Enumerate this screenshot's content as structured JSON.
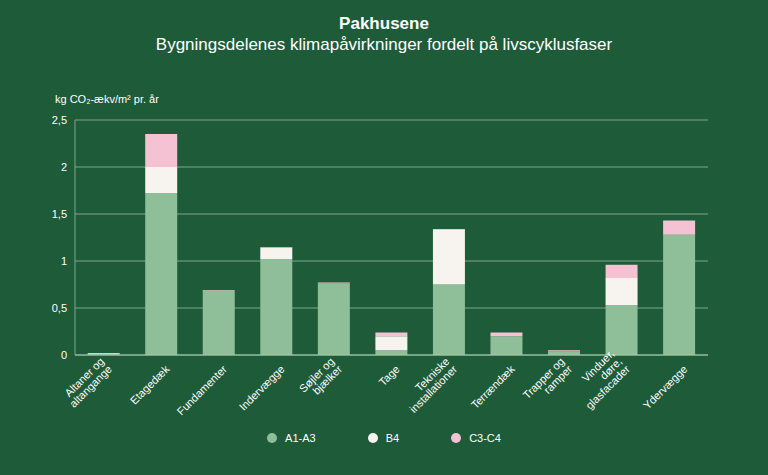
{
  "chart_data": {
    "type": "bar",
    "title": "Pakhusene",
    "subtitle": "Bygningsdelenes klimapåvirkninger fordelt på livscyklusfaser",
    "y_label": "kg CO₂-ækv/m² pr. år",
    "categories": [
      "Altaner og altangange",
      "Etagedæk",
      "Fundamenter",
      "Indervægge",
      "Søjler og bjælker",
      "Tage",
      "Tekniske installationer",
      "Terrændæk",
      "Trapper og ramper",
      "Vinduer, døre, glasfacader",
      "Ydervægge"
    ],
    "series": [
      {
        "name": "A1-A3",
        "color": "#8fbf98",
        "values": [
          0.01,
          1.72,
          0.68,
          1.02,
          0.76,
          0.05,
          0.75,
          0.2,
          0.04,
          0.53,
          1.28
        ]
      },
      {
        "name": "B4",
        "color": "#f7f3ef",
        "values": [
          0,
          0.28,
          0,
          0.12,
          0,
          0.15,
          0.58,
          0,
          0,
          0.29,
          0
        ]
      },
      {
        "name": "C3-C4",
        "color": "#f4c2d2",
        "values": [
          0.01,
          0.35,
          0.01,
          0.01,
          0.01,
          0.04,
          0.01,
          0.04,
          0.01,
          0.14,
          0.15
        ]
      }
    ],
    "stacked": true,
    "ylim": [
      0,
      2.5
    ],
    "yticks": [
      0,
      {
        "value": 0.5,
        "label": "0,5"
      },
      1,
      {
        "value": 1.5,
        "label": "1,5"
      },
      2,
      {
        "value": 2.5,
        "label": "2,5"
      }
    ],
    "grid": true,
    "legend": "bottom"
  }
}
